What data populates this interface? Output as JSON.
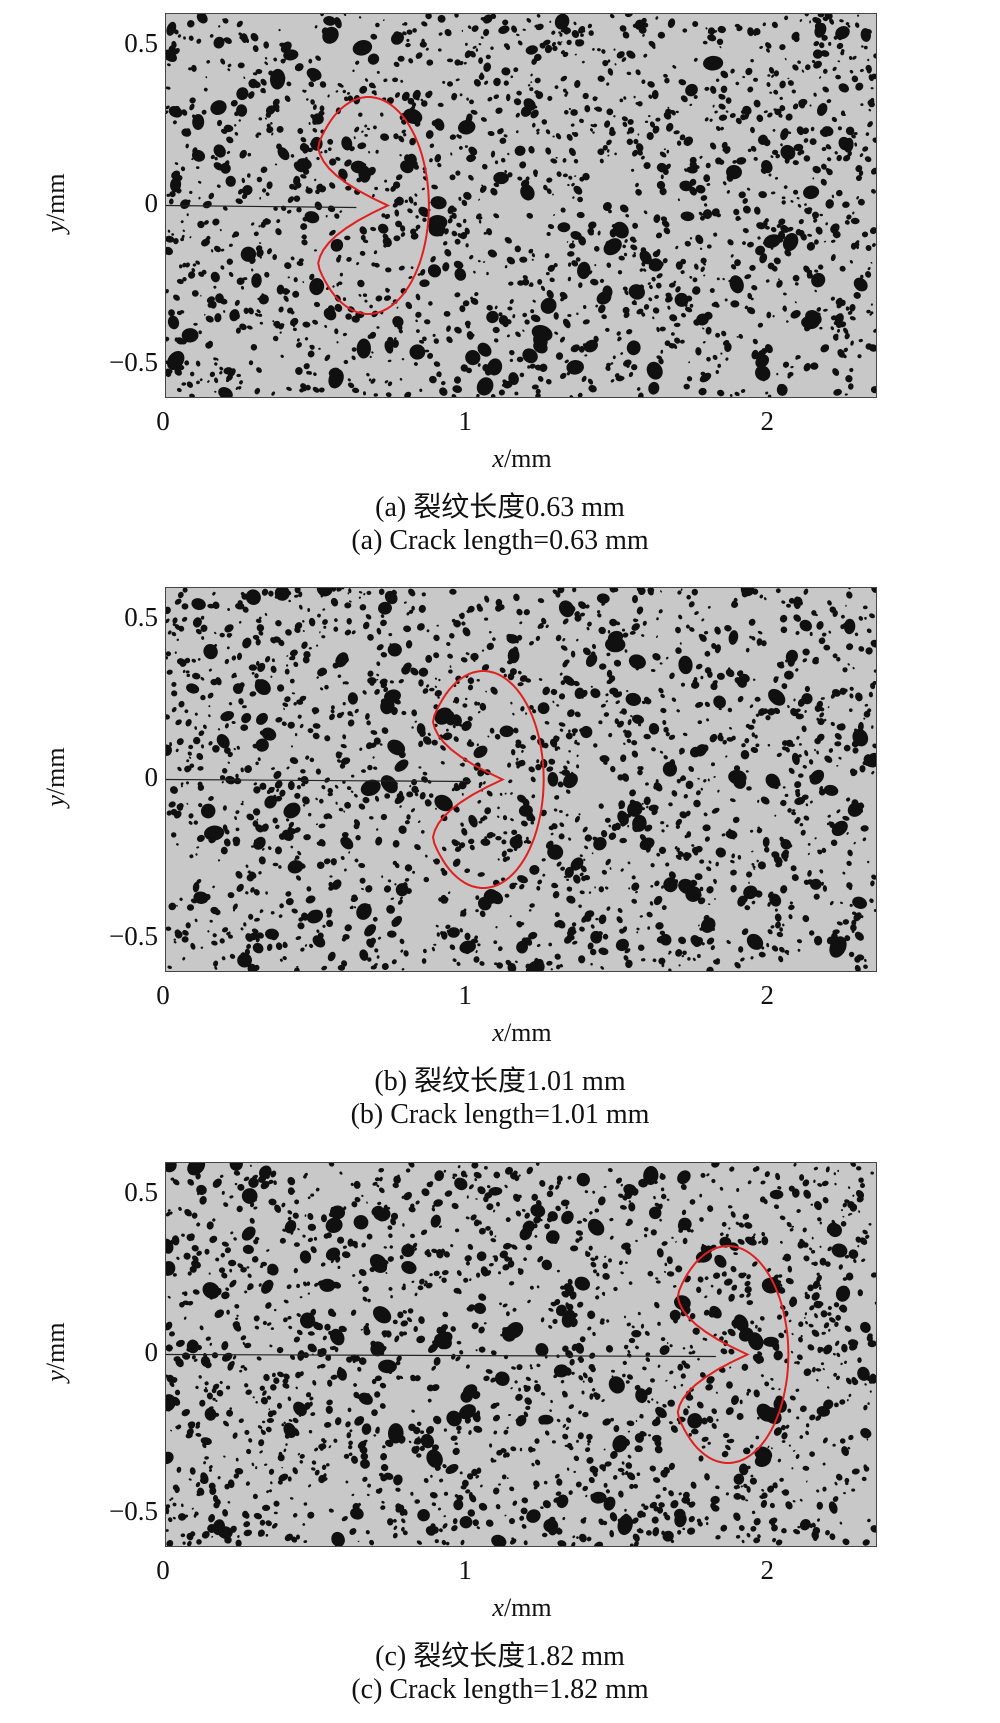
{
  "figure": {
    "panels": [
      {
        "caption_zh": "(a) 裂纹长度0.63 mm",
        "caption_en": "(a) Crack length=0.63 mm",
        "crack_length_mm": 0.63,
        "zone_center_x_mm": 0.67
      },
      {
        "caption_zh": "(b) 裂纹长度1.01 mm",
        "caption_en": "(b) Crack length=1.01 mm",
        "crack_length_mm": 1.01,
        "zone_center_x_mm": 1.05
      },
      {
        "caption_zh": "(c) 裂纹长度1.82 mm",
        "caption_en": "(c) Crack length=1.82 mm",
        "crack_length_mm": 1.82,
        "zone_center_x_mm": 1.86
      }
    ],
    "axes": {
      "x_label_var": "x",
      "x_label_unit": "/mm",
      "y_label_var": "y",
      "y_label_unit": "/mm",
      "x_ticks": [
        "0",
        "1",
        "2"
      ],
      "y_ticks": [
        "0.5",
        "0",
        "−0.5"
      ],
      "xlim": [
        0,
        2.35
      ],
      "ylim": [
        -0.6,
        0.6
      ]
    },
    "colors": {
      "plastic_zone_outline": "#e02020",
      "speckle_background": "#c8c8c8",
      "speckle_dots": "#101010"
    }
  }
}
